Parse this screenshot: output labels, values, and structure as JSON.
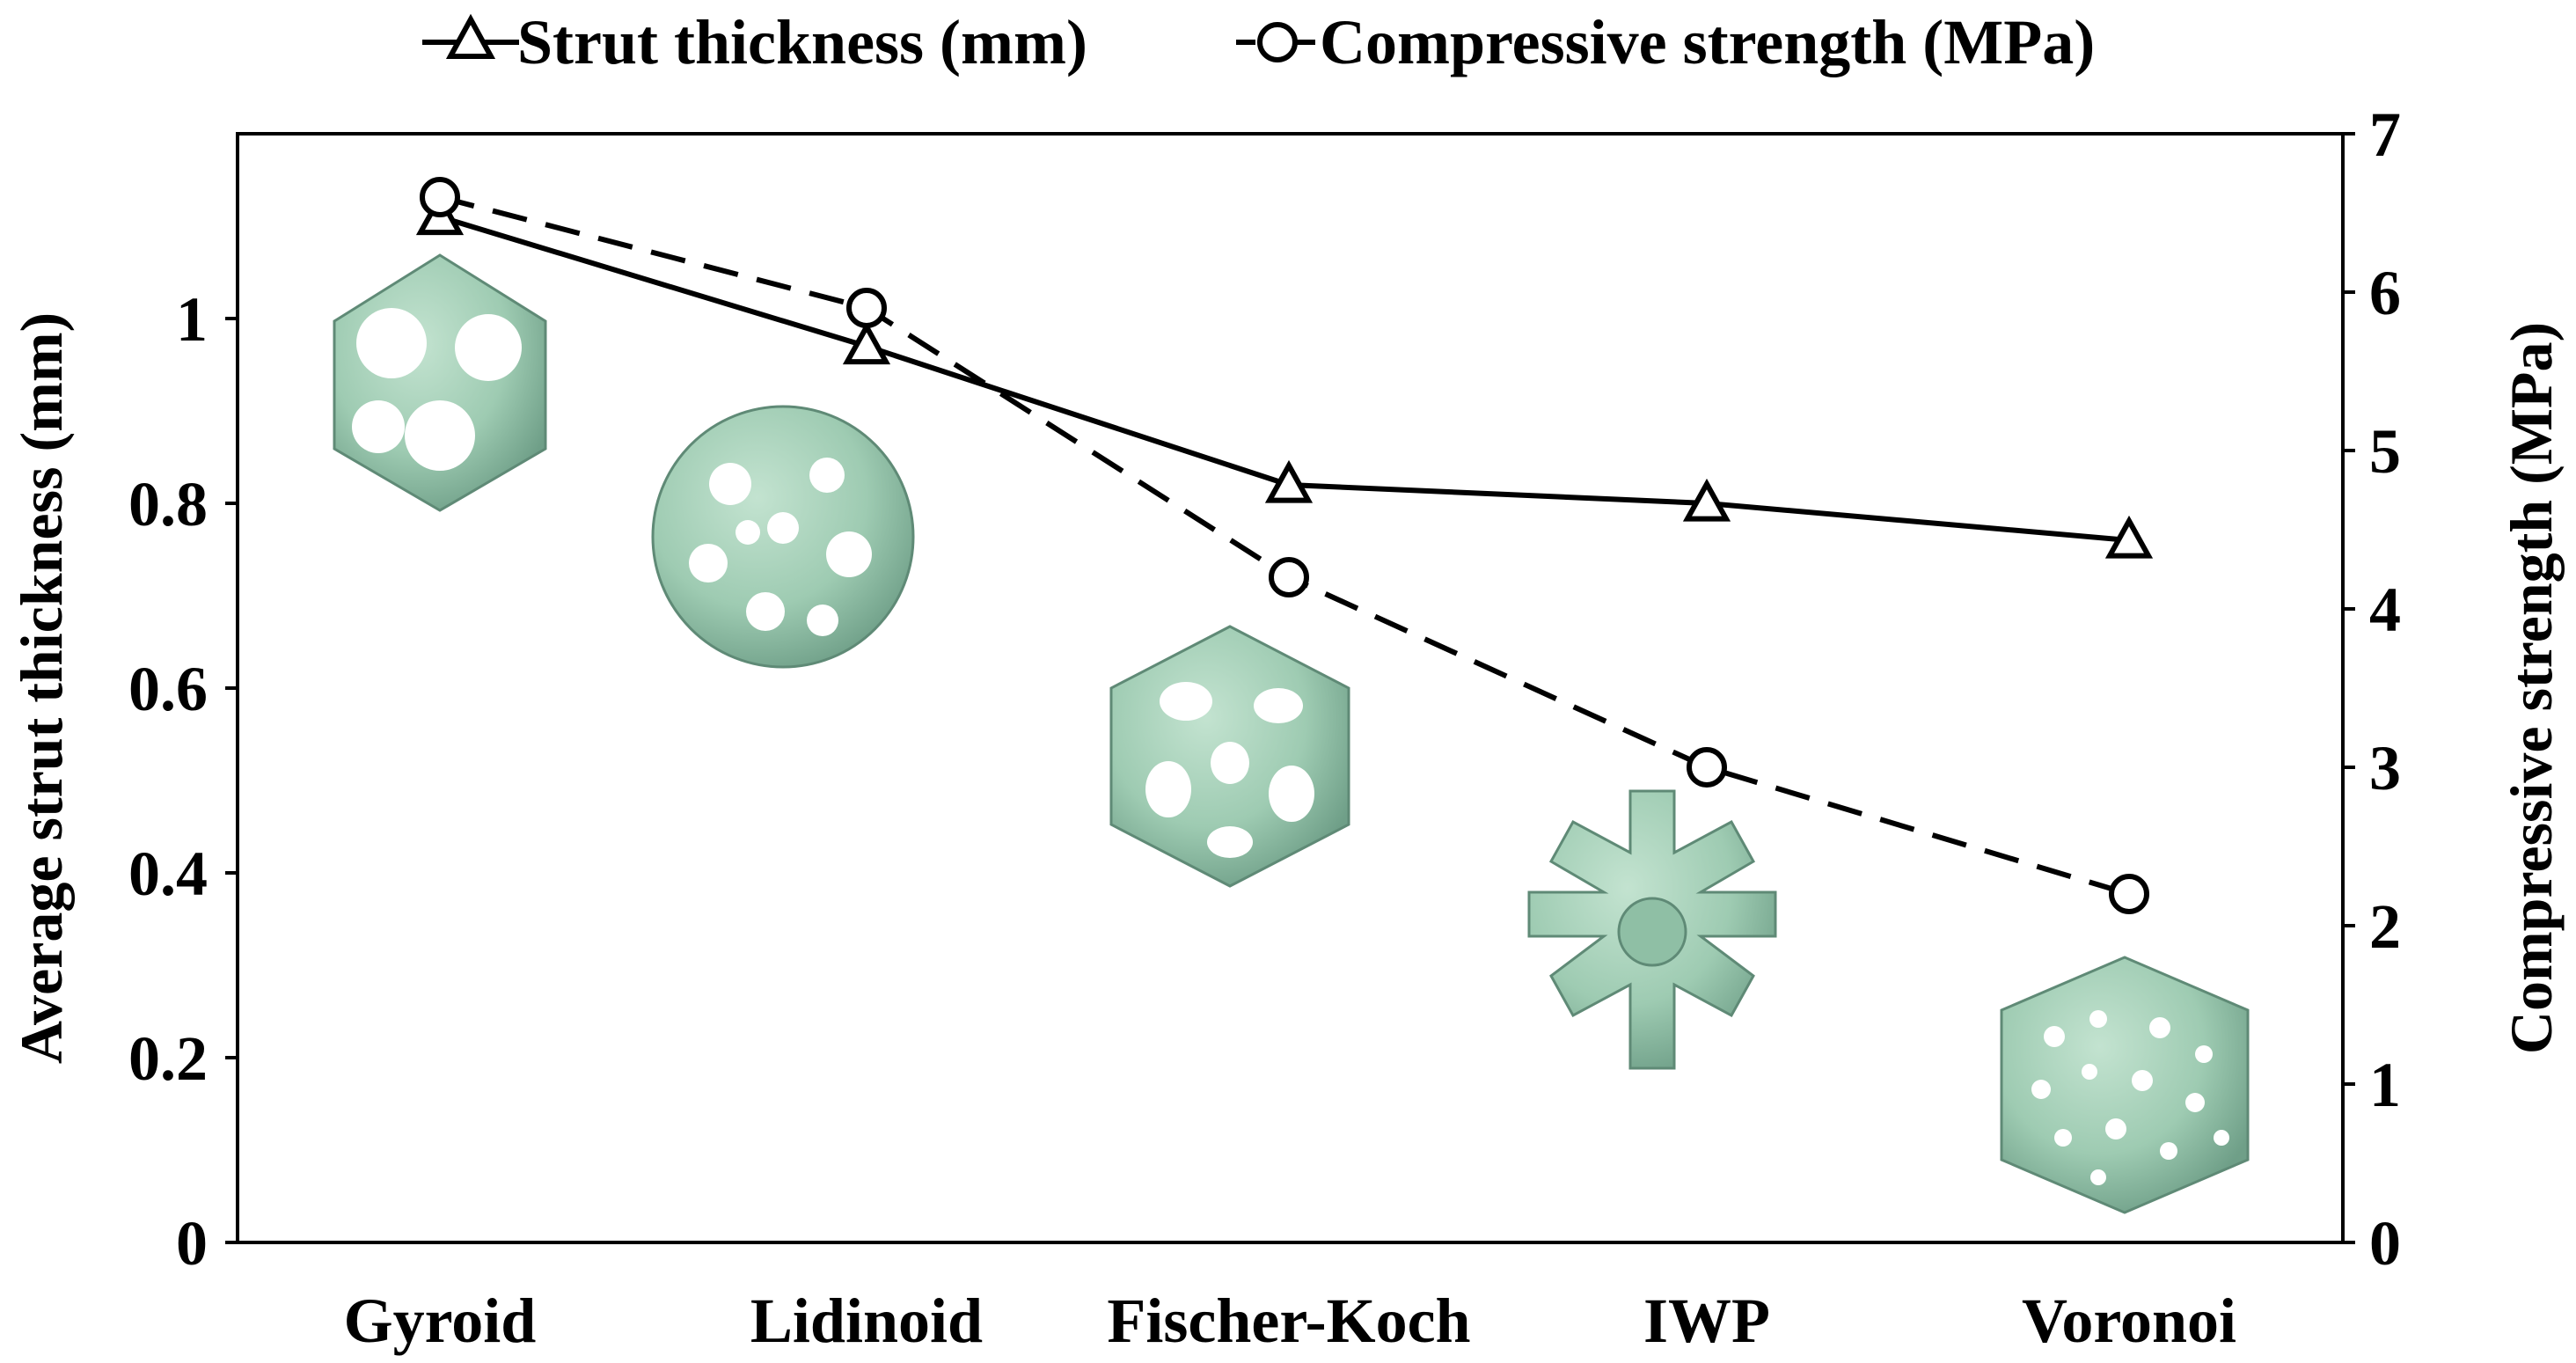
{
  "chart_data": {
    "type": "line",
    "categories": [
      "Gyroid",
      "Lidinoid",
      "Fischer-Koch",
      "IWP",
      "Voronoi"
    ],
    "series": [
      {
        "name": "Strut thickness (mm)",
        "axis": "left",
        "marker": "triangle",
        "line_style": "solid",
        "values": [
          1.11,
          0.97,
          0.82,
          0.8,
          0.76
        ]
      },
      {
        "name": "Compressive strength (MPa)",
        "axis": "right",
        "marker": "circle",
        "line_style": "dashed",
        "values": [
          6.6,
          5.9,
          4.2,
          3.0,
          2.2
        ]
      }
    ],
    "left_axis": {
      "label": "Average strut thickness (mm)",
      "ylim": [
        0,
        1.2
      ],
      "ticks": [
        0,
        0.2,
        0.4,
        0.6,
        0.8,
        1
      ],
      "tick_labels": [
        "0",
        "0.2",
        "0.4",
        "0.6",
        "0.8",
        "1"
      ]
    },
    "right_axis": {
      "label": "Compressive strength (MPa)",
      "ylim": [
        0,
        7
      ],
      "ticks": [
        0,
        1,
        2,
        3,
        4,
        5,
        6,
        7
      ],
      "tick_labels": [
        "0",
        "1",
        "2",
        "3",
        "4",
        "5",
        "6",
        "7"
      ]
    },
    "legend_placement": "top",
    "grid": false,
    "lattice_images": [
      "gyroid-cell",
      "lidinoid-cell",
      "fischer-koch-cell",
      "iwp-cell",
      "voronoi-cell"
    ],
    "colors": {
      "line": "#000000",
      "lattice_fill": "#9ecbb2",
      "lattice_shade": "#6f9f88"
    }
  }
}
